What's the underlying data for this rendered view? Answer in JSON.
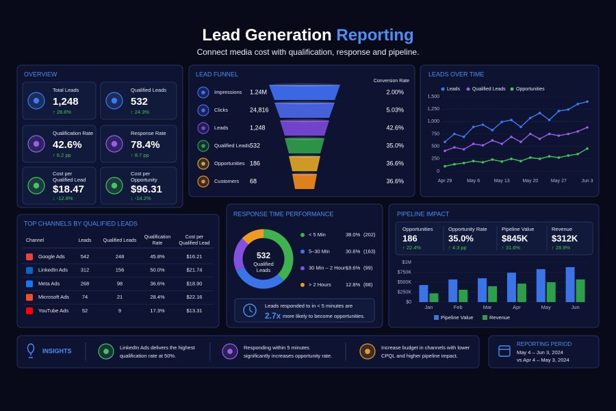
{
  "header": {
    "title_main": "Lead Generation",
    "title_accent": "Reporting",
    "subtitle": "Connect media cost with qualification, response and pipeline."
  },
  "overview": {
    "title": "OVERVIEW",
    "cards": [
      {
        "label": [
          "Total Leads"
        ],
        "value": "1,248",
        "change": "↑ 28.6%"
      },
      {
        "label": [
          "Qualified Leads"
        ],
        "value": "532",
        "change": "↑ 24.3%"
      },
      {
        "label": [
          "Qualification Rate"
        ],
        "value": "42.6%",
        "change": "↑ 6.2 pp"
      },
      {
        "label": [
          "Response Rate"
        ],
        "value": "78.4%",
        "change": "↑ 8.7 pp"
      },
      {
        "label": [
          "Cost per",
          "Qualified Lead"
        ],
        "value": "$18.47",
        "change": "↓ -12.8%"
      },
      {
        "label": [
          "Cost per",
          "Opportunity"
        ],
        "value": "$96.31",
        "change": "↓ -14.2%"
      }
    ]
  },
  "funnel": {
    "title": "LEAD FUNNEL",
    "rate_header": "Conversion Rate",
    "stages": [
      {
        "name": "Impressions",
        "value": "1.24M",
        "rate": "2.00%"
      },
      {
        "name": "Clicks",
        "value": "24,816",
        "rate": "5.03%"
      },
      {
        "name": "Leads",
        "value": "1,248",
        "rate": "42.6%"
      },
      {
        "name": "Qualified Leads",
        "value": "532",
        "rate": "35.0%"
      },
      {
        "name": "Opportunities",
        "value": "186",
        "rate": "36.6%"
      },
      {
        "name": "Customers",
        "value": "68",
        "rate": "36.6%"
      }
    ]
  },
  "channels": {
    "title": "TOP CHANNELS BY QUALIFIED LEADS",
    "columns": [
      [
        "Channel"
      ],
      [
        "Leads"
      ],
      [
        "Qualified Leads"
      ],
      [
        "Qualification",
        "Rate"
      ],
      [
        "Cost per",
        "Qualified Lead"
      ]
    ],
    "rows": [
      [
        "Google Ads",
        "542",
        "248",
        "45.8%",
        "$16.21"
      ],
      [
        "LinkedIn Ads",
        "312",
        "156",
        "50.0%",
        "$21.74"
      ],
      [
        "Meta Ads",
        "268",
        "98",
        "36.6%",
        "$18.90"
      ],
      [
        "Microsoft Ads",
        "74",
        "21",
        "28.4%",
        "$22.16"
      ],
      [
        "YouTube Ads",
        "52",
        "9",
        "17.3%",
        "$13.31"
      ]
    ]
  },
  "response_callout": {
    "line1": "Leads responded to in < 5 minutes are",
    "highlight": "2.7x",
    "line2": "more likely to become opportunities."
  },
  "pipeline": {
    "kpis": [
      {
        "label": "Opportunities",
        "value": "186",
        "change": "↑ 22.4%"
      },
      {
        "label": "Opportunity Rate",
        "value": "35.0%",
        "change": "↑ 4.3 pp"
      },
      {
        "label": "Pipeline Value",
        "value": "$845K",
        "change": "↑ 31.6%"
      },
      {
        "label": "Revenue",
        "value": "$312K",
        "change": "↑ 28.9%"
      }
    ]
  },
  "insights": {
    "title": "INSIGHTS",
    "items": [
      [
        "LinkedIn Ads delivers the highest",
        "qualification rate at 50%."
      ],
      [
        "Responding within 5 minutes",
        "significantly increases opportunity rate."
      ],
      [
        "Increase budget in channels with lower",
        "CPQL and higher pipeline impact."
      ]
    ]
  },
  "period": {
    "title": "REPORTING PERIOD",
    "current": "May 4 – Jun 3, 2024",
    "previous": "vs Apr 4 – May 3, 2024"
  },
  "chart_data": [
    {
      "type": "line",
      "title": "LEADS OVER TIME",
      "categories": [
        "Apr 29",
        null,
        null,
        "May 6",
        null,
        null,
        "May 13",
        null,
        null,
        "May 20",
        null,
        null,
        "May 27",
        null,
        null,
        "Jun 3"
      ],
      "ylim": [
        0,
        1500
      ],
      "yticks": [
        0,
        250,
        500,
        750,
        {
          "value": 1000,
          "label": "1,000"
        },
        {
          "value": 1250,
          "label": "1,250"
        },
        {
          "value": 1500,
          "label": "1,500"
        }
      ],
      "grid": true,
      "series": [
        {
          "name": "Leads",
          "color": "#3d7bf2",
          "values": [
            590,
            750,
            690,
            890,
            935,
            825,
            990,
            1030,
            890,
            1070,
            1170,
            1030,
            1210,
            1240,
            1350,
            1400
          ]
        },
        {
          "name": "Qualified Leads",
          "color": "#9b5cf0",
          "values": [
            410,
            480,
            440,
            550,
            520,
            620,
            550,
            690,
            590,
            750,
            650,
            750,
            715,
            750,
            800,
            880
          ]
        },
        {
          "name": "Opportunities",
          "color": "#45c55a",
          "values": [
            100,
            140,
            165,
            205,
            180,
            235,
            195,
            250,
            205,
            275,
            250,
            300,
            275,
            315,
            345,
            455
          ]
        }
      ]
    },
    {
      "type": "pie",
      "title": "RESPONSE TIME PERFORMANCE",
      "center_value": "532",
      "center_label": [
        "Qualified",
        "Leads"
      ],
      "categories": [
        "< 5 Min",
        "5–30 Min",
        "30 Min – 2 Hours",
        "> 2 Hours"
      ],
      "values": [
        38.0,
        30.6,
        18.6,
        12.8
      ],
      "value_labels": [
        "38.0%",
        "30.6%",
        "18.6%",
        "12.8%"
      ],
      "count_labels": [
        "(202)",
        "(163)",
        "(99)",
        "(68)"
      ],
      "colors": [
        "#3fb24f",
        "#3b74e8",
        "#8450e0",
        "#f09a22"
      ]
    },
    {
      "type": "bar",
      "title": "PIPELINE IMPACT",
      "categories": [
        "Jan",
        "Feb",
        "Mar",
        "Apr",
        "May",
        "Jun"
      ],
      "ylim": [
        0,
        1000000
      ],
      "yticks": [
        {
          "value": 0,
          "label": "$0"
        },
        {
          "value": 250000,
          "label": "$250K"
        },
        {
          "value": 500000,
          "label": "$500K"
        },
        {
          "value": 750000,
          "label": "$750K"
        },
        {
          "value": 1000000,
          "label": "$1M"
        }
      ],
      "grid": true,
      "series": [
        {
          "name": "Pipeline Value",
          "color": "#3a74e6",
          "values": [
            430000,
            570000,
            600000,
            740000,
            830000,
            880000
          ]
        },
        {
          "name": "Revenue",
          "color": "#2f9e4a",
          "values": [
            220000,
            310000,
            400000,
            465000,
            500000,
            570000
          ]
        }
      ]
    }
  ]
}
